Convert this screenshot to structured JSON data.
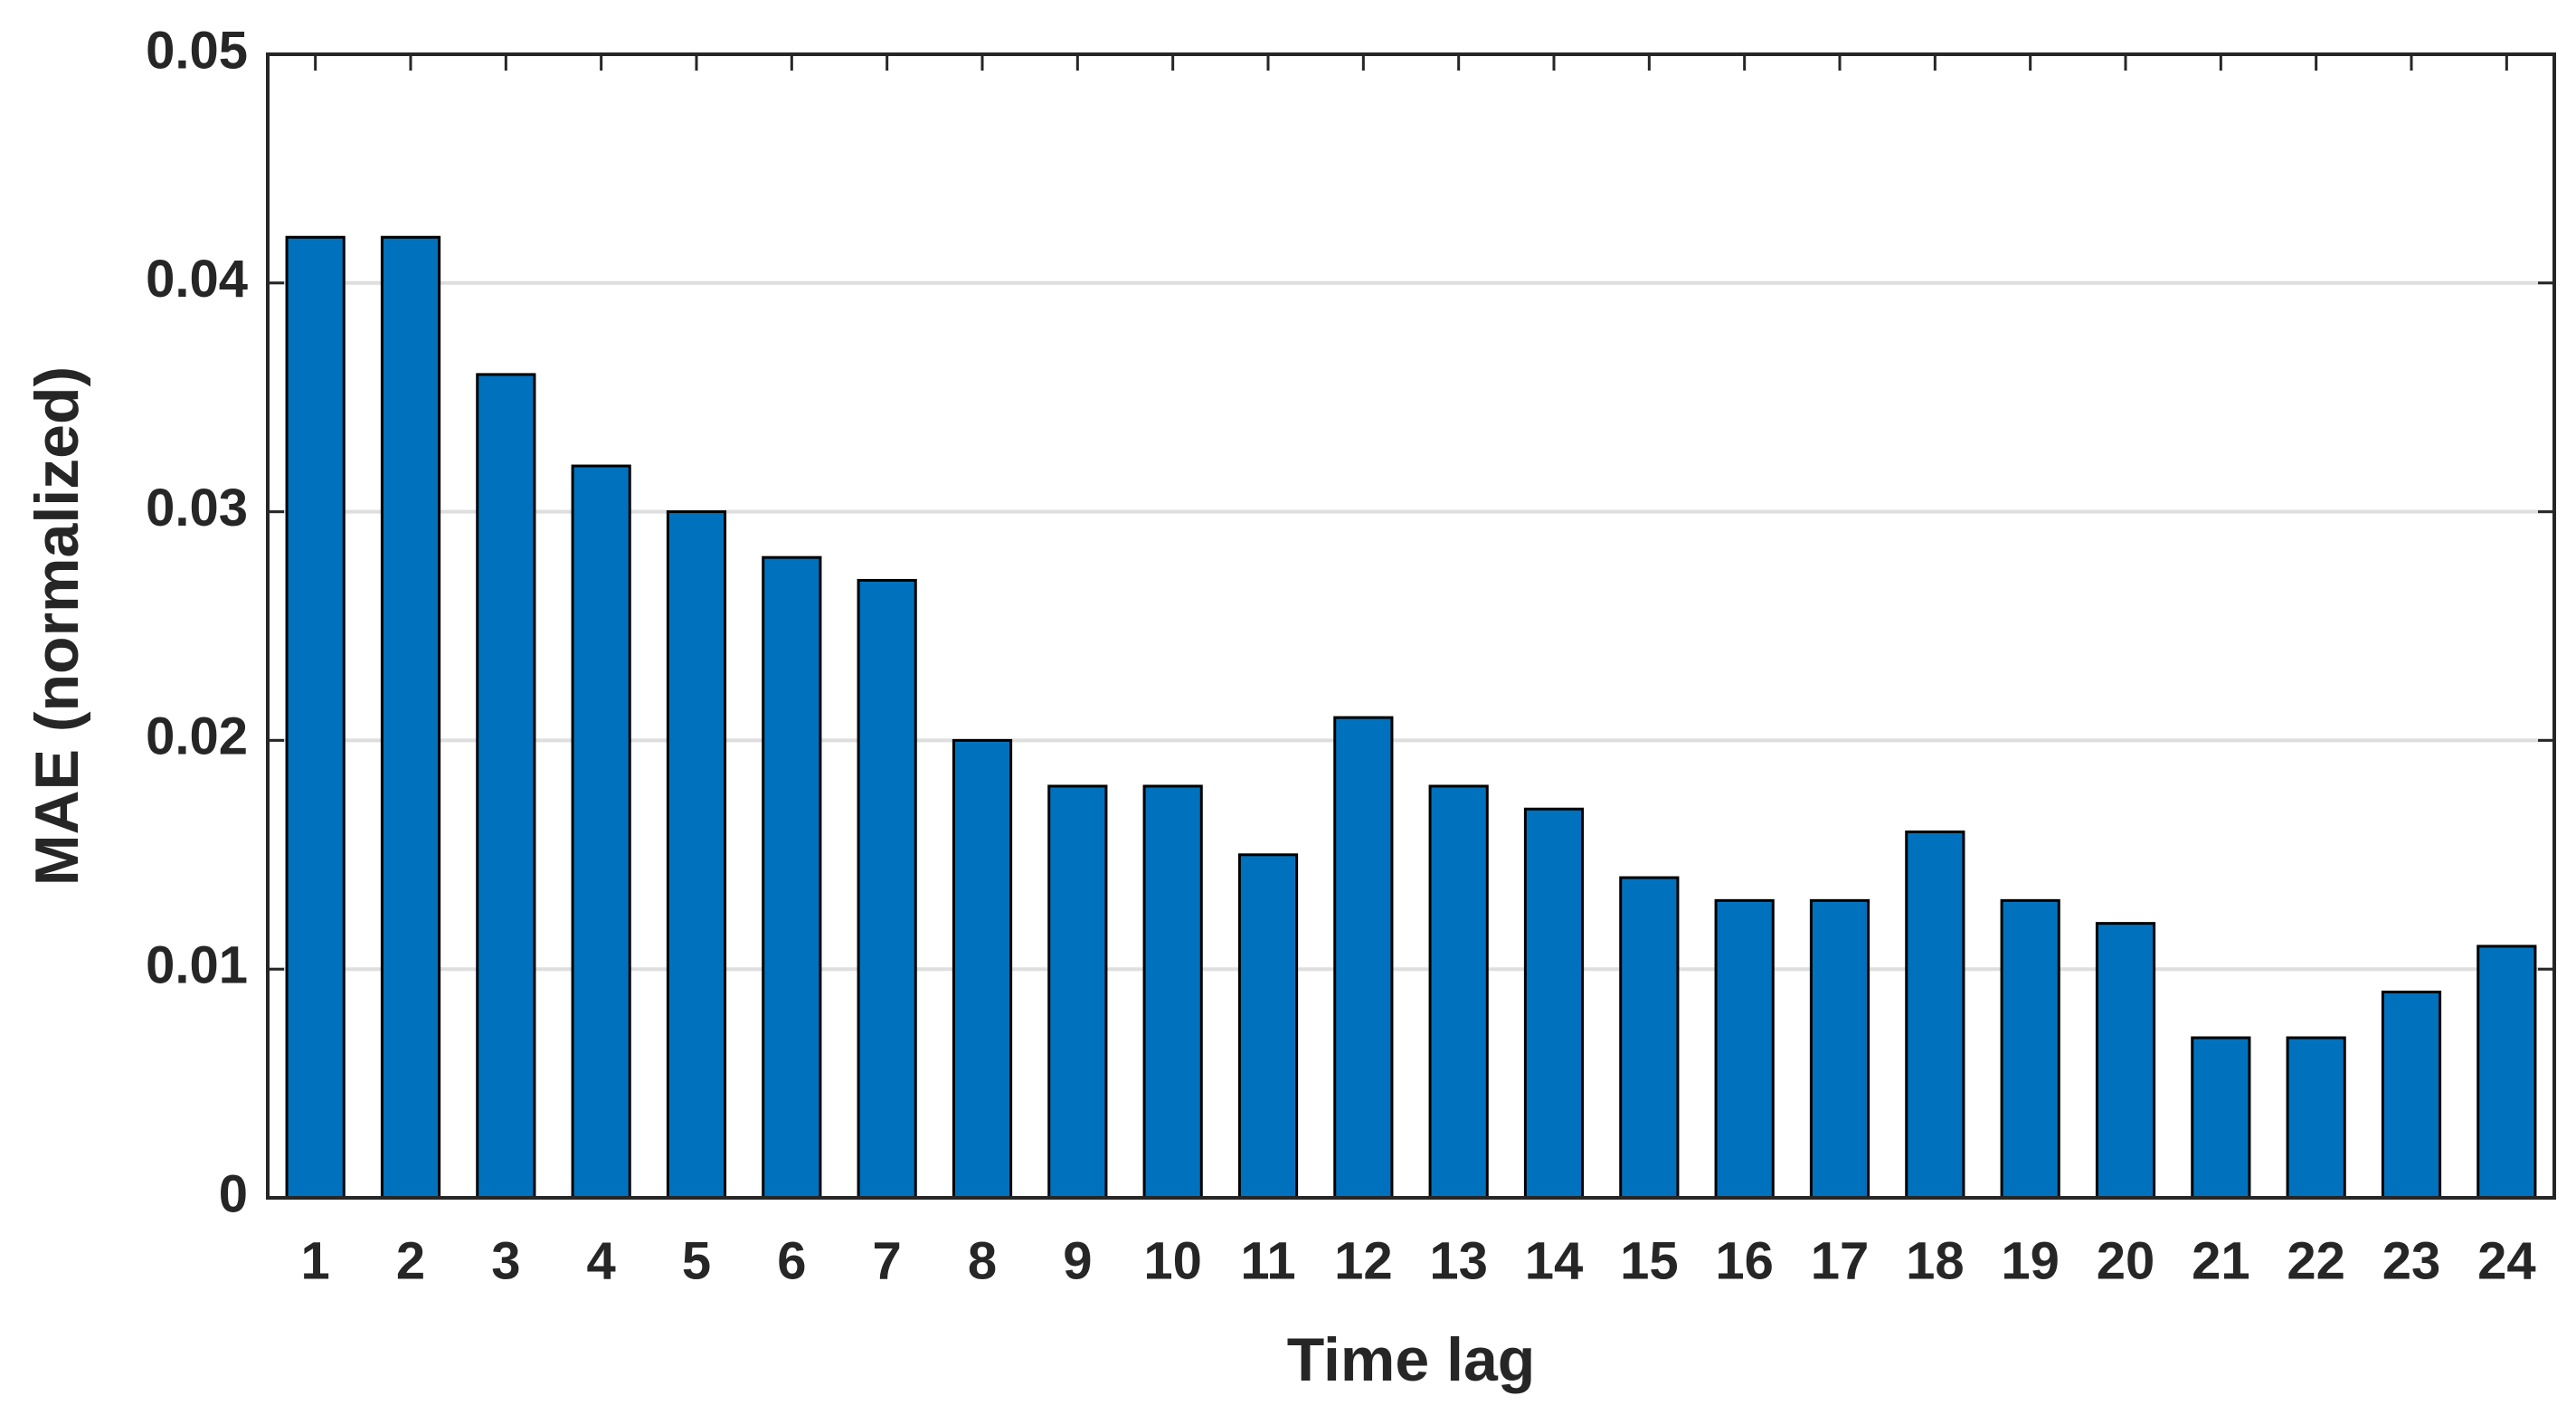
{
  "chart_data": {
    "type": "bar",
    "xlabel": "Time lag",
    "ylabel": "MAE (normalized)",
    "categories": [
      "1",
      "2",
      "3",
      "4",
      "5",
      "6",
      "7",
      "8",
      "9",
      "10",
      "11",
      "12",
      "13",
      "14",
      "15",
      "16",
      "17",
      "18",
      "19",
      "20",
      "21",
      "22",
      "23",
      "24"
    ],
    "values": [
      0.042,
      0.042,
      0.036,
      0.032,
      0.03,
      0.028,
      0.027,
      0.02,
      0.018,
      0.018,
      0.015,
      0.021,
      0.018,
      0.017,
      0.014,
      0.013,
      0.013,
      0.016,
      0.013,
      0.012,
      0.007,
      0.007,
      0.009,
      0.011
    ],
    "color": "#0072bd",
    "ylim": [
      0,
      0.05
    ],
    "yticks": [
      0,
      0.01,
      0.02,
      0.03,
      0.04,
      0.05
    ],
    "grid": true
  }
}
